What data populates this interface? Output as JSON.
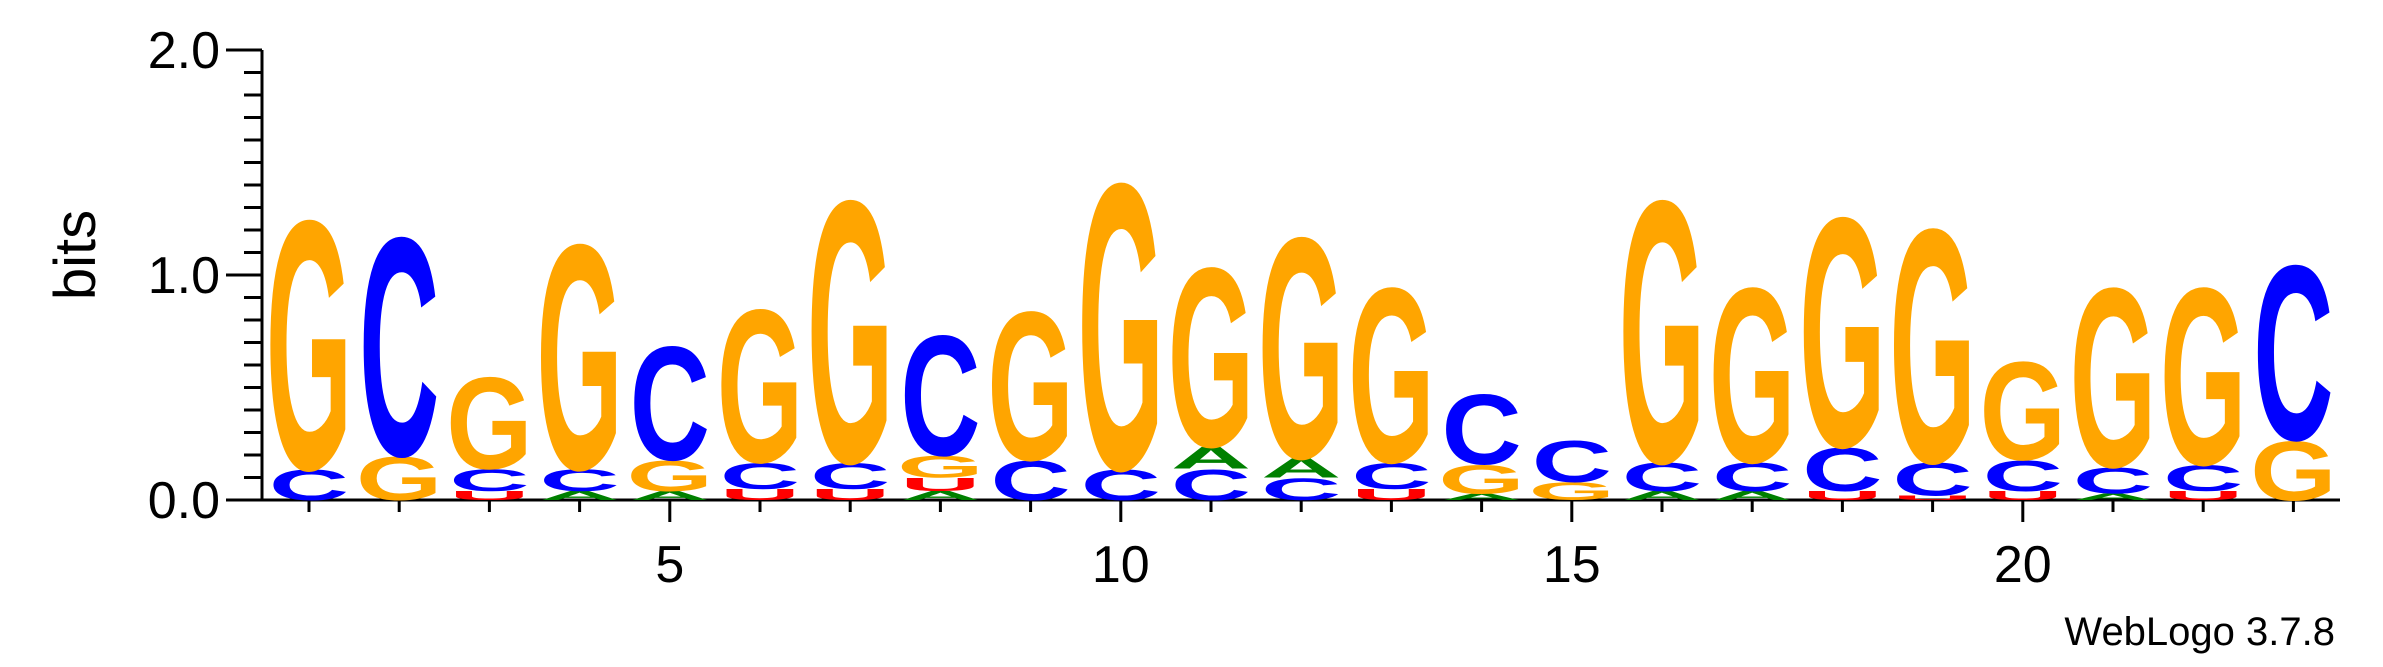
{
  "chart_data": {
    "type": "sequence-logo",
    "ylabel": "bits",
    "ylim": [
      0,
      2
    ],
    "y_ticks": [
      "0.0",
      "1.0",
      "2.0"
    ],
    "x_ticks": [
      5,
      10,
      15,
      20
    ],
    "credit": "WebLogo 3.7.8",
    "colors": {
      "G": "#FFA500",
      "C": "#0000FF",
      "A": "#008000",
      "U": "#FF0000"
    },
    "positions": [
      {
        "pos": 1,
        "stack": [
          [
            "C",
            0.14
          ],
          [
            "G",
            1.14
          ]
        ]
      },
      {
        "pos": 2,
        "stack": [
          [
            "G",
            0.2
          ],
          [
            "C",
            1.0
          ]
        ]
      },
      {
        "pos": 3,
        "stack": [
          [
            "U",
            0.04
          ],
          [
            "C",
            0.1
          ],
          [
            "G",
            0.42
          ]
        ]
      },
      {
        "pos": 4,
        "stack": [
          [
            "A",
            0.04
          ],
          [
            "C",
            0.1
          ],
          [
            "G",
            1.03
          ]
        ]
      },
      {
        "pos": 5,
        "stack": [
          [
            "A",
            0.04
          ],
          [
            "G",
            0.14
          ],
          [
            "C",
            0.52
          ]
        ]
      },
      {
        "pos": 6,
        "stack": [
          [
            "U",
            0.05
          ],
          [
            "C",
            0.12
          ],
          [
            "G",
            0.7
          ]
        ]
      },
      {
        "pos": 7,
        "stack": [
          [
            "U",
            0.05
          ],
          [
            "C",
            0.12
          ],
          [
            "G",
            1.2
          ]
        ]
      },
      {
        "pos": 8,
        "stack": [
          [
            "A",
            0.04
          ],
          [
            "U",
            0.06
          ],
          [
            "G",
            0.1
          ],
          [
            "C",
            0.55
          ]
        ]
      },
      {
        "pos": 9,
        "stack": [
          [
            "C",
            0.18
          ],
          [
            "G",
            0.68
          ]
        ]
      },
      {
        "pos": 10,
        "stack": [
          [
            "C",
            0.14
          ],
          [
            "G",
            1.31
          ]
        ]
      },
      {
        "pos": 11,
        "stack": [
          [
            "C",
            0.14
          ],
          [
            "A",
            0.1
          ],
          [
            "G",
            0.82
          ]
        ]
      },
      {
        "pos": 12,
        "stack": [
          [
            "C",
            0.1
          ],
          [
            "A",
            0.09
          ],
          [
            "G",
            1.01
          ]
        ]
      },
      {
        "pos": 13,
        "stack": [
          [
            "U",
            0.05
          ],
          [
            "C",
            0.12
          ],
          [
            "G",
            0.8
          ]
        ]
      },
      {
        "pos": 14,
        "stack": [
          [
            "A",
            0.03
          ],
          [
            "G",
            0.13
          ],
          [
            "C",
            0.32
          ]
        ]
      },
      {
        "pos": 15,
        "stack": [
          [
            "G",
            0.08
          ],
          [
            "C",
            0.19
          ]
        ]
      },
      {
        "pos": 16,
        "stack": [
          [
            "A",
            0.04
          ],
          [
            "C",
            0.13
          ],
          [
            "G",
            1.2
          ]
        ]
      },
      {
        "pos": 17,
        "stack": [
          [
            "A",
            0.04
          ],
          [
            "C",
            0.13
          ],
          [
            "G",
            0.8
          ]
        ]
      },
      {
        "pos": 18,
        "stack": [
          [
            "U",
            0.04
          ],
          [
            "C",
            0.2
          ],
          [
            "G",
            1.05
          ]
        ]
      },
      {
        "pos": 19,
        "stack": [
          [
            "U",
            0.02
          ],
          [
            "C",
            0.15
          ],
          [
            "G",
            1.07
          ]
        ]
      },
      {
        "pos": 20,
        "stack": [
          [
            "U",
            0.04
          ],
          [
            "C",
            0.14
          ],
          [
            "G",
            0.45
          ]
        ]
      },
      {
        "pos": 21,
        "stack": [
          [
            "A",
            0.03
          ],
          [
            "C",
            0.12
          ],
          [
            "G",
            0.82
          ]
        ]
      },
      {
        "pos": 22,
        "stack": [
          [
            "U",
            0.04
          ],
          [
            "C",
            0.12
          ],
          [
            "G",
            0.81
          ]
        ]
      },
      {
        "pos": 23,
        "stack": [
          [
            "G",
            0.27
          ],
          [
            "C",
            0.8
          ]
        ]
      }
    ]
  }
}
